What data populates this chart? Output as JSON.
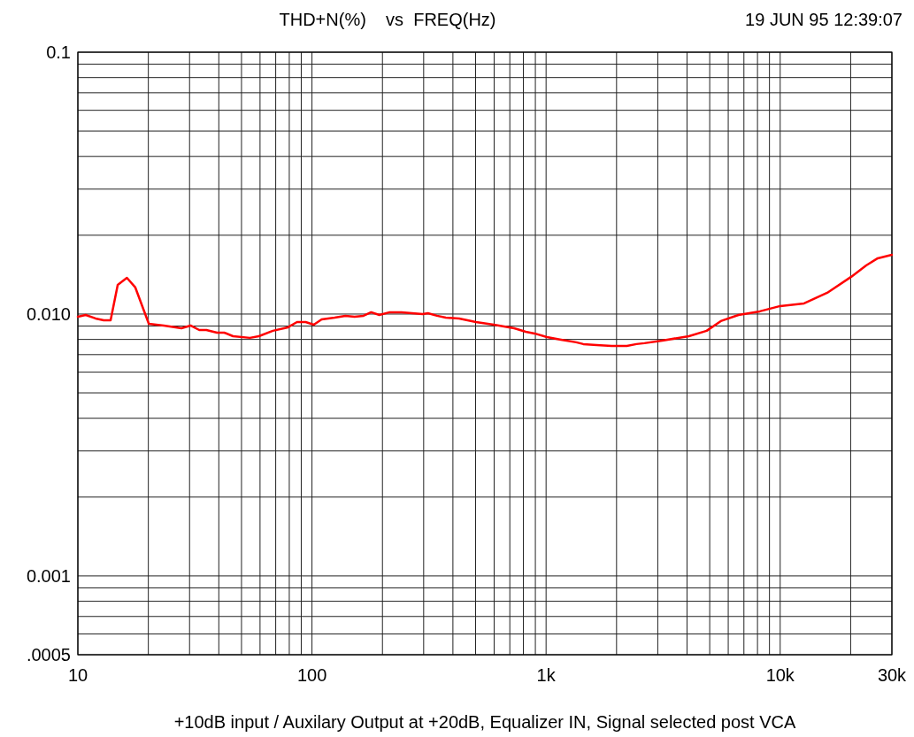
{
  "chart_data": {
    "type": "line",
    "title": "THD+N(%)    vs  FREQ(Hz)",
    "annotations": [
      "19 JUN 95 12:39:07",
      "+10dB input / Auxilary Output at +20dB, Equalizer IN, Signal selected post VCA"
    ],
    "log": "xy",
    "grid": true,
    "marker": "none",
    "line_style": "solid",
    "xlim": [
      10,
      30000
    ],
    "ylim": [
      0.0005,
      0.1
    ],
    "xticks": [
      10,
      {
        "value": 20,
        "label": null
      },
      {
        "value": 30,
        "label": null
      },
      {
        "value": 40,
        "label": null
      },
      {
        "value": 50,
        "label": null
      },
      {
        "value": 60,
        "label": null
      },
      {
        "value": 70,
        "label": null
      },
      {
        "value": 80,
        "label": null
      },
      {
        "value": 90,
        "label": null
      },
      100,
      {
        "value": 200,
        "label": null
      },
      {
        "value": 300,
        "label": null
      },
      {
        "value": 400,
        "label": null
      },
      {
        "value": 500,
        "label": null
      },
      {
        "value": 600,
        "label": null
      },
      {
        "value": 700,
        "label": null
      },
      {
        "value": 800,
        "label": null
      },
      {
        "value": 900,
        "label": null
      },
      {
        "value": 1000,
        "label": "1k"
      },
      {
        "value": 2000,
        "label": null
      },
      {
        "value": 3000,
        "label": null
      },
      {
        "value": 4000,
        "label": null
      },
      {
        "value": 5000,
        "label": null
      },
      {
        "value": 6000,
        "label": null
      },
      {
        "value": 7000,
        "label": null
      },
      {
        "value": 8000,
        "label": null
      },
      {
        "value": 9000,
        "label": null
      },
      {
        "value": 10000,
        "label": "10k"
      },
      {
        "value": 20000,
        "label": null
      },
      {
        "value": 30000,
        "label": "30k"
      }
    ],
    "yticks": [
      {
        "value": 0.0005,
        "label": ".0005"
      },
      {
        "value": 0.0006,
        "label": null
      },
      {
        "value": 0.0007,
        "label": null
      },
      {
        "value": 0.0008,
        "label": null
      },
      {
        "value": 0.0009,
        "label": null
      },
      0.001,
      {
        "value": 0.002,
        "label": null
      },
      {
        "value": 0.003,
        "label": null
      },
      {
        "value": 0.004,
        "label": null
      },
      {
        "value": 0.005,
        "label": null
      },
      {
        "value": 0.006,
        "label": null
      },
      {
        "value": 0.007,
        "label": null
      },
      {
        "value": 0.008,
        "label": null
      },
      {
        "value": 0.009,
        "label": null
      },
      {
        "value": 0.01,
        "label": "0.010"
      },
      {
        "value": 0.02,
        "label": null
      },
      {
        "value": 0.03,
        "label": null
      },
      {
        "value": 0.04,
        "label": null
      },
      {
        "value": 0.05,
        "label": null
      },
      {
        "value": 0.06,
        "label": null
      },
      {
        "value": 0.07,
        "label": null
      },
      {
        "value": 0.08,
        "label": null
      },
      {
        "value": 0.09,
        "label": null
      },
      0.1
    ],
    "series": [
      {
        "color": "#ff0000",
        "x": [
          10,
          10.8,
          11.9,
          12.9,
          13.8,
          14.8,
          16.2,
          17.6,
          20.1,
          23.3,
          27.7,
          30.3,
          33,
          35.4,
          39.3,
          42.2,
          46,
          54.3,
          59.3,
          68.1,
          79,
          86.3,
          94,
          101.8,
          110,
          125,
          139,
          152,
          166,
          179,
          194,
          215,
          241,
          297,
          313,
          342,
          373,
          425,
          502,
          598,
          731,
          819,
          893,
          1009,
          1159,
          1345,
          1442,
          1644,
          1906,
          2213,
          2434,
          2631,
          3133,
          4074,
          4853,
          5576,
          6637,
          8185,
          10000,
          12650,
          15880,
          20100,
          23300,
          26100,
          30000
        ],
        "values": [
          0.00977,
          0.00992,
          0.00962,
          0.00947,
          0.00947,
          0.01293,
          0.01375,
          0.01263,
          0.00918,
          0.00904,
          0.00883,
          0.00904,
          0.00869,
          0.00869,
          0.00849,
          0.00849,
          0.00823,
          0.00811,
          0.00823,
          0.00863,
          0.0089,
          0.00932,
          0.00932,
          0.00911,
          0.00954,
          0.00969,
          0.00985,
          0.00977,
          0.00985,
          0.01016,
          0.00992,
          0.01016,
          0.01016,
          0.01,
          0.01008,
          0.00985,
          0.00969,
          0.00962,
          0.00932,
          0.00911,
          0.00883,
          0.00856,
          0.00843,
          0.00817,
          0.00798,
          0.0078,
          0.00768,
          0.00762,
          0.00756,
          0.00756,
          0.00768,
          0.00774,
          0.00792,
          0.00823,
          0.00863,
          0.0094,
          0.00992,
          0.01024,
          0.01073,
          0.01098,
          0.01205,
          0.01387,
          0.01534,
          0.01633,
          0.01684
        ]
      }
    ]
  }
}
